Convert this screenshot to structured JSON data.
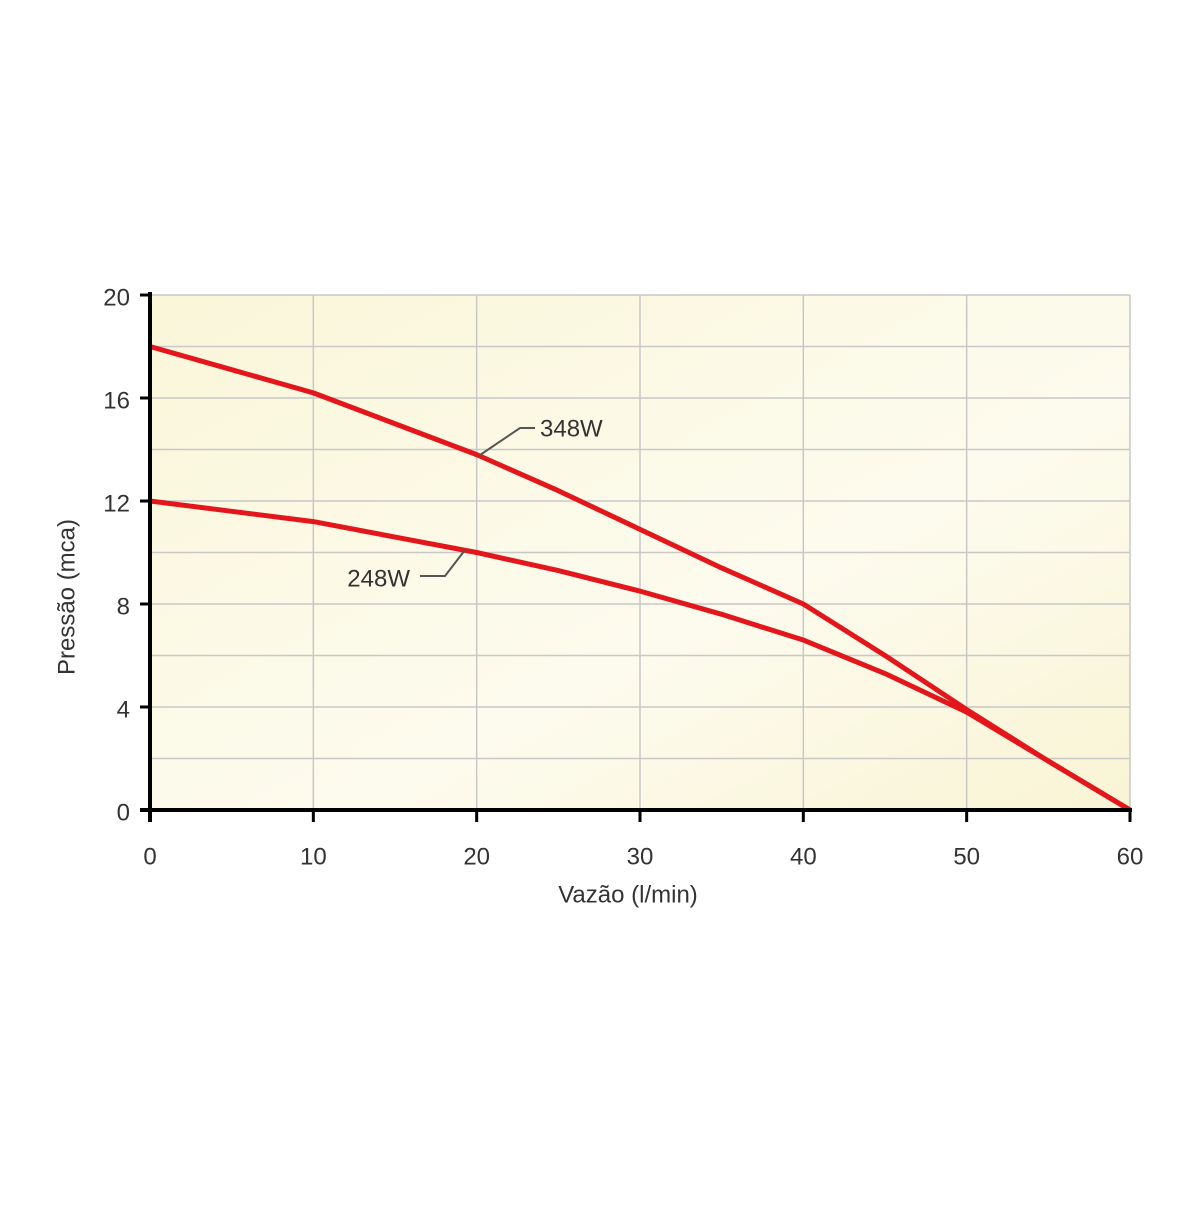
{
  "chart_data": {
    "type": "line",
    "x_label": "Vazão (l/min)",
    "y_label": "Pressão (mca)",
    "x": [
      0,
      5,
      10,
      15,
      20,
      25,
      30,
      35,
      40,
      45,
      50,
      55,
      60
    ],
    "series": [
      {
        "name": "348W",
        "color": "#e3161b",
        "values": [
          18,
          17.1,
          16.2,
          15.0,
          13.8,
          12.4,
          10.9,
          9.4,
          8.0,
          6.0,
          3.9,
          1.9,
          0
        ]
      },
      {
        "name": "248W",
        "color": "#e3161b",
        "values": [
          12,
          11.6,
          11.2,
          10.6,
          10.0,
          9.3,
          8.5,
          7.6,
          6.6,
          5.3,
          3.8,
          1.9,
          0
        ]
      }
    ],
    "xlim": [
      0,
      60
    ],
    "xticks": [
      0,
      10,
      20,
      30,
      40,
      50,
      60
    ],
    "ylim": [
      0,
      20
    ],
    "yticks": [
      0,
      4,
      8,
      12,
      16,
      20
    ],
    "minor_yticks": [
      2,
      6,
      10,
      14,
      18
    ],
    "grid": true
  }
}
